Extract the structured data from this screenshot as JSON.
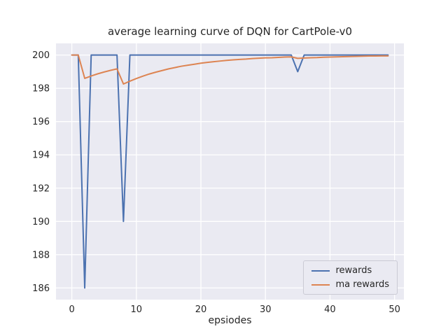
{
  "figure": {
    "title": "average learning curve of DQN for CartPole-v0",
    "xlabel": "epsiodes"
  },
  "chart_data": {
    "type": "line",
    "title": "average learning curve of DQN for CartPole-v0",
    "xlabel": "epsiodes",
    "ylabel": "",
    "grid": true,
    "legend_position": "lower right",
    "plot_bg": "#eaeaf2",
    "grid_color": "#ffffff",
    "xlim": [
      -2.45,
      51.45
    ],
    "ylim": [
      185.3,
      200.7
    ],
    "xticks": [
      0,
      10,
      20,
      30,
      40,
      50
    ],
    "yticks": [
      186,
      188,
      190,
      192,
      194,
      196,
      198,
      200
    ],
    "x": [
      0,
      1,
      2,
      3,
      4,
      5,
      6,
      7,
      8,
      9,
      10,
      11,
      12,
      13,
      14,
      15,
      16,
      17,
      18,
      19,
      20,
      21,
      22,
      23,
      24,
      25,
      26,
      27,
      28,
      29,
      30,
      31,
      32,
      33,
      34,
      35,
      36,
      37,
      38,
      39,
      40,
      41,
      42,
      43,
      44,
      45,
      46,
      47,
      48,
      49
    ],
    "series": [
      {
        "name": "rewards",
        "color": "#4c72b0",
        "values": [
          200,
          200,
          186,
          200,
          200,
          200,
          200,
          200,
          190,
          200,
          200,
          200,
          200,
          200,
          200,
          200,
          200,
          200,
          200,
          200,
          200,
          200,
          200,
          200,
          200,
          200,
          200,
          200,
          200,
          200,
          200,
          200,
          200,
          200,
          200,
          199,
          200,
          200,
          200,
          200,
          200,
          200,
          200,
          200,
          200,
          200,
          200,
          200,
          200,
          200
        ]
      },
      {
        "name": "ma rewards",
        "color": "#dd8452",
        "values": [
          200.0,
          200.0,
          198.6,
          198.74,
          198.87,
          198.98,
          199.08,
          199.17,
          198.26,
          198.43,
          198.59,
          198.73,
          198.86,
          198.97,
          199.07,
          199.17,
          199.25,
          199.33,
          199.39,
          199.45,
          199.51,
          199.56,
          199.6,
          199.64,
          199.68,
          199.71,
          199.74,
          199.76,
          199.79,
          199.81,
          199.83,
          199.84,
          199.86,
          199.88,
          199.89,
          199.8,
          199.82,
          199.84,
          199.85,
          199.87,
          199.88,
          199.89,
          199.9,
          199.91,
          199.92,
          199.93,
          199.94,
          199.94,
          199.95,
          199.95
        ]
      }
    ]
  }
}
